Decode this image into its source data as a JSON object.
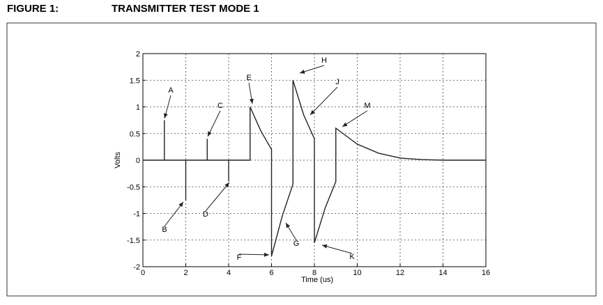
{
  "chart_data": {
    "type": "line",
    "figure_label": "FIGURE 1:",
    "title": "TRANSMITTER TEST MODE 1",
    "x_label": "Time (us)",
    "y_label": "Volts",
    "x": [
      0,
      1,
      1,
      1,
      2,
      2,
      2,
      3,
      3,
      3,
      4,
      4,
      4,
      5,
      5,
      5.5,
      6,
      6,
      6.5,
      7,
      7,
      7.5,
      8,
      8,
      8.5,
      9,
      9,
      10,
      11,
      12,
      13,
      14,
      16
    ],
    "values": [
      0,
      0,
      0.75,
      0,
      0,
      -0.75,
      0,
      0,
      0.4,
      0,
      0,
      -0.4,
      0,
      0,
      1.0,
      0.55,
      0.2,
      -1.8,
      -1.05,
      -0.45,
      1.5,
      0.85,
      0.4,
      -1.55,
      -0.9,
      -0.4,
      0.6,
      0.3,
      0.13,
      0.04,
      0.01,
      0,
      0
    ],
    "color": "#222222",
    "xlim": [
      0,
      16
    ],
    "xticks": [
      0,
      2,
      4,
      6,
      8,
      10,
      12,
      14,
      16
    ],
    "ylim": [
      -2,
      2
    ],
    "yticks": [
      -2,
      -1.5,
      -1,
      -0.5,
      0,
      0.5,
      1,
      1.5,
      2
    ],
    "grid": true,
    "annotations": [
      "A",
      "B",
      "C",
      "D",
      "E",
      "F",
      "G",
      "H",
      "J",
      "K",
      "M"
    ]
  }
}
